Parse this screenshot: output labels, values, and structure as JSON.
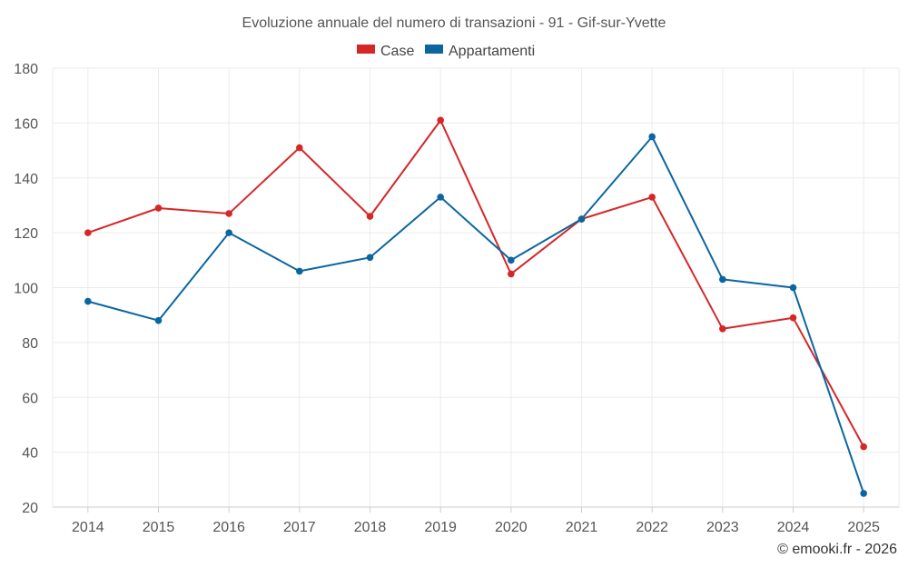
{
  "chart_data": {
    "type": "line",
    "title": "Evoluzione annuale del numero di transazioni - 91 - Gif-sur-Yvette",
    "categories": [
      "2014",
      "2015",
      "2016",
      "2017",
      "2018",
      "2019",
      "2020",
      "2021",
      "2022",
      "2023",
      "2024",
      "2025"
    ],
    "series": [
      {
        "name": "Case",
        "color": "#d62728",
        "values": [
          120,
          129,
          127,
          151,
          126,
          161,
          105,
          125,
          133,
          85,
          89,
          42
        ]
      },
      {
        "name": "Appartamenti",
        "color": "#0b66a0",
        "values": [
          95,
          88,
          120,
          106,
          111,
          133,
          110,
          125,
          155,
          103,
          100,
          25
        ]
      }
    ],
    "ylim": [
      20,
      180
    ],
    "yticks": [
      20,
      40,
      60,
      80,
      100,
      120,
      140,
      160,
      180
    ],
    "grid": true,
    "legend": "top-center"
  },
  "credit": "© emooki.fr - 2026"
}
